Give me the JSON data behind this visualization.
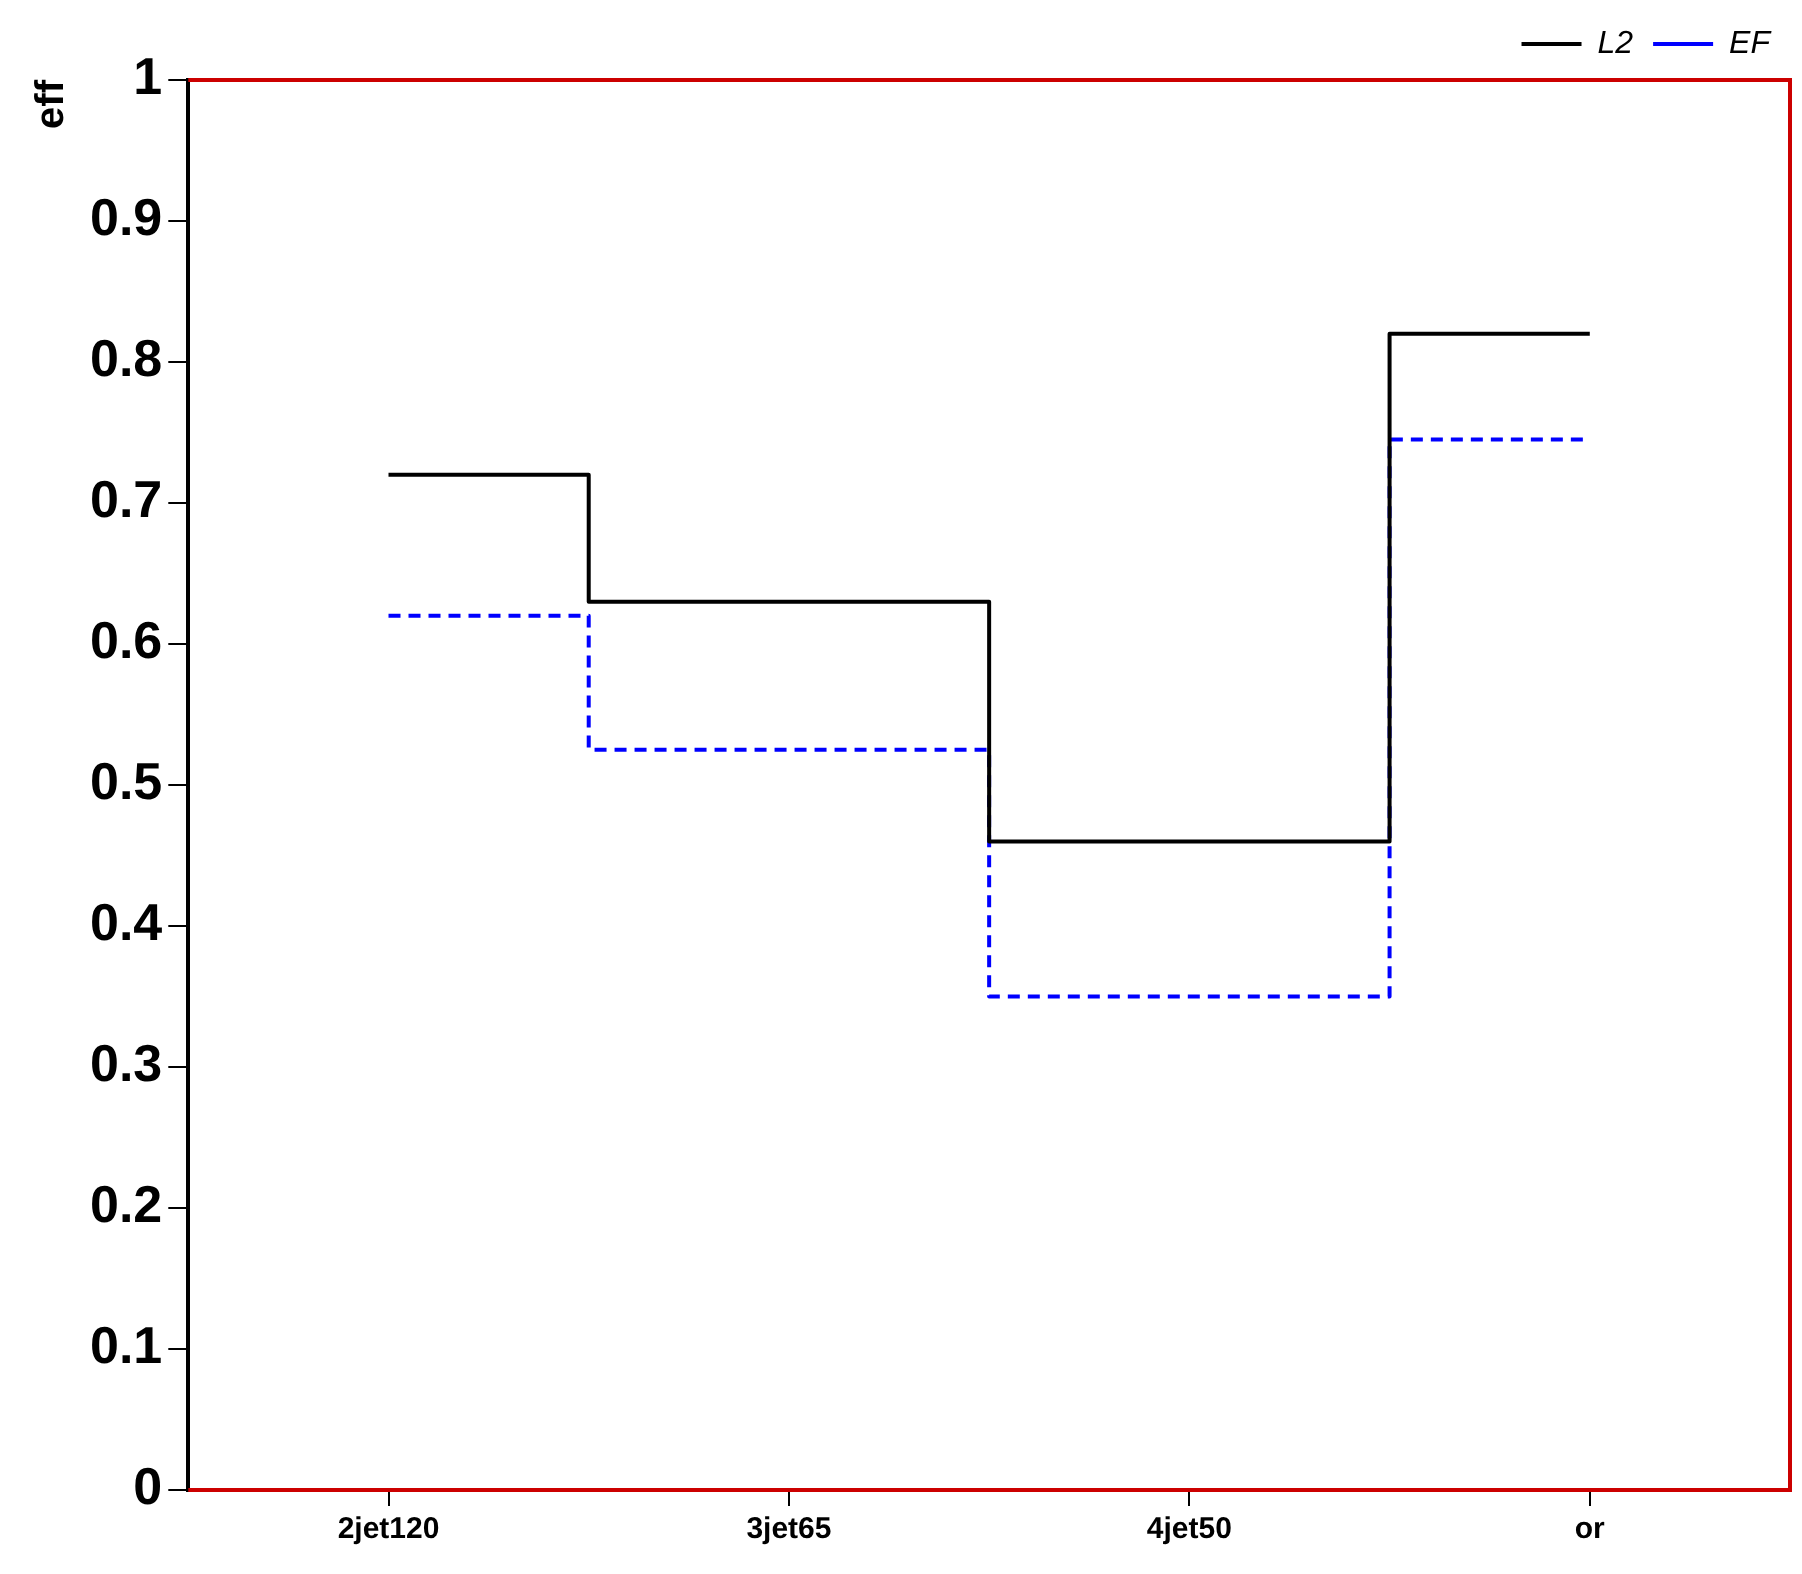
{
  "chart_data": {
    "type": "step",
    "ylabel": "eff",
    "categories": [
      "2jet120",
      "3jet65",
      "4jet50",
      "or"
    ],
    "series": [
      {
        "name": "L2",
        "color": "#000000",
        "line_style": "solid",
        "values": [
          0.72,
          0.63,
          0.46,
          0.82
        ]
      },
      {
        "name": "EF",
        "color": "#0000ff",
        "line_style": "dashed",
        "values": [
          0.62,
          0.525,
          0.35,
          0.745
        ]
      }
    ],
    "ylim": [
      0,
      1
    ],
    "yticks": [
      0,
      0.1,
      0.2,
      0.3,
      0.4,
      0.5,
      0.6,
      0.7,
      0.8,
      0.9,
      1
    ],
    "grid": false,
    "legend": "top right"
  }
}
